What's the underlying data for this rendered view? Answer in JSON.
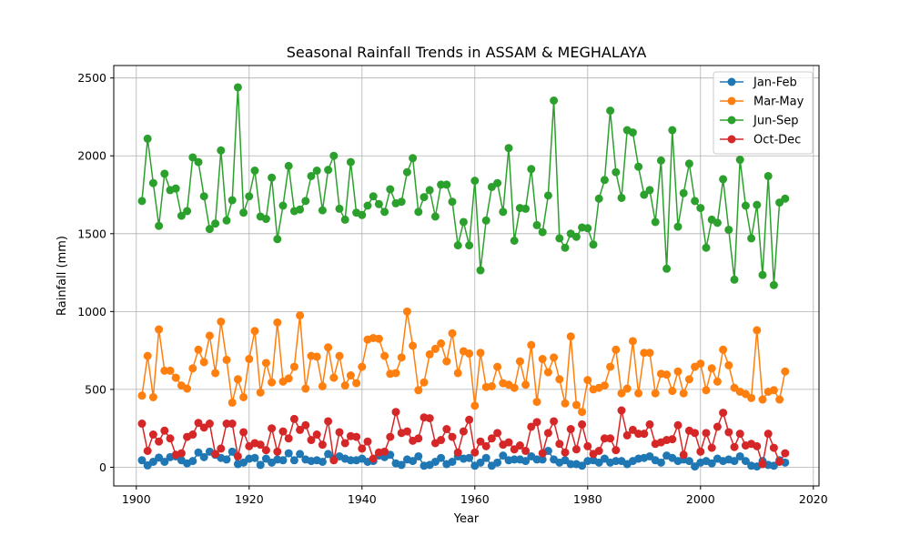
{
  "chart_data": {
    "type": "line",
    "title": "Seasonal Rainfall Trends in ASSAM & MEGHALAYA",
    "xlabel": "Year",
    "ylabel": "Rainfall (mm)",
    "xlim": [
      1896,
      2021
    ],
    "ylim": [
      -120,
      2580
    ],
    "xticks": [
      1900,
      1920,
      1940,
      1960,
      1980,
      2000,
      2020
    ],
    "yticks": [
      0,
      500,
      1000,
      1500,
      2000,
      2500
    ],
    "grid": true,
    "legend_position": "top-right",
    "x_start": 1901,
    "series": [
      {
        "name": "Jan-Feb",
        "color": "#1f77b4",
        "values": [
          45,
          12,
          35,
          62,
          35,
          65,
          70,
          45,
          25,
          40,
          95,
          65,
          100,
          80,
          60,
          50,
          100,
          20,
          30,
          55,
          60,
          15,
          55,
          30,
          50,
          45,
          90,
          45,
          85,
          50,
          40,
          45,
          35,
          85,
          55,
          70,
          55,
          45,
          45,
          55,
          35,
          40,
          75,
          65,
          80,
          25,
          15,
          50,
          40,
          70,
          10,
          15,
          35,
          60,
          20,
          35,
          70,
          55,
          60,
          10,
          30,
          60,
          10,
          30,
          75,
          45,
          50,
          50,
          40,
          70,
          50,
          50,
          105,
          50,
          30,
          45,
          20,
          20,
          10,
          40,
          45,
          30,
          55,
          30,
          40,
          40,
          20,
          40,
          55,
          60,
          70,
          45,
          30,
          75,
          60,
          40,
          50,
          40,
          5,
          30,
          40,
          25,
          55,
          40,
          50,
          40,
          70,
          40,
          10,
          5,
          40,
          15,
          10,
          45,
          30
        ]
      },
      {
        "name": "Mar-May",
        "color": "#ff7f0e",
        "values": [
          460,
          715,
          450,
          885,
          620,
          620,
          575,
          525,
          505,
          635,
          755,
          675,
          845,
          605,
          935,
          690,
          415,
          565,
          450,
          695,
          875,
          480,
          670,
          545,
          930,
          550,
          570,
          645,
          975,
          505,
          715,
          710,
          520,
          770,
          575,
          715,
          525,
          590,
          540,
          645,
          820,
          830,
          825,
          715,
          600,
          605,
          705,
          1000,
          780,
          495,
          545,
          725,
          760,
          795,
          680,
          860,
          605,
          745,
          730,
          395,
          735,
          515,
          520,
          645,
          540,
          530,
          510,
          680,
          530,
          785,
          420,
          695,
          610,
          705,
          565,
          410,
          840,
          400,
          355,
          560,
          500,
          510,
          525,
          645,
          755,
          475,
          505,
          810,
          475,
          735,
          735,
          475,
          600,
          595,
          490,
          615,
          475,
          565,
          645,
          665,
          495,
          635,
          550,
          755,
          655,
          510,
          485,
          470,
          445,
          880,
          435,
          485,
          495,
          435,
          615
        ]
      },
      {
        "name": "Jun-Sep",
        "color": "#2ca02c",
        "values": [
          1710,
          2110,
          1825,
          1550,
          1885,
          1780,
          1790,
          1615,
          1645,
          1990,
          1960,
          1740,
          1530,
          1565,
          2035,
          1585,
          1715,
          2440,
          1635,
          1740,
          1905,
          1610,
          1595,
          1860,
          1465,
          1680,
          1935,
          1645,
          1655,
          1710,
          1870,
          1905,
          1650,
          1910,
          2000,
          1660,
          1590,
          1960,
          1635,
          1620,
          1680,
          1740,
          1690,
          1640,
          1785,
          1695,
          1705,
          1895,
          1985,
          1640,
          1735,
          1780,
          1610,
          1815,
          1815,
          1705,
          1425,
          1575,
          1425,
          1840,
          1265,
          1585,
          1800,
          1825,
          1640,
          2050,
          1455,
          1665,
          1660,
          1915,
          1555,
          1510,
          1745,
          2355,
          1470,
          1410,
          1500,
          1480,
          1540,
          1535,
          1430,
          1725,
          1845,
          2290,
          1895,
          1730,
          2165,
          2150,
          1930,
          1750,
          1780,
          1575,
          1970,
          1275,
          2165,
          1545,
          1760,
          1950,
          1710,
          1665,
          1410,
          1590,
          1570,
          1850,
          1525,
          1205,
          1975,
          1680,
          1470,
          1685,
          1235,
          1870,
          1170,
          1700,
          1725
        ]
      },
      {
        "name": "Oct-Dec",
        "color": "#d62728",
        "values": [
          280,
          105,
          210,
          165,
          235,
          185,
          80,
          90,
          195,
          210,
          285,
          255,
          280,
          85,
          120,
          280,
          280,
          70,
          225,
          135,
          155,
          145,
          110,
          250,
          100,
          230,
          185,
          310,
          240,
          270,
          175,
          210,
          145,
          295,
          45,
          225,
          155,
          200,
          195,
          120,
          165,
          55,
          95,
          100,
          195,
          355,
          220,
          230,
          170,
          185,
          320,
          315,
          155,
          175,
          245,
          195,
          95,
          230,
          305,
          95,
          165,
          135,
          185,
          220,
          145,
          160,
          115,
          140,
          105,
          260,
          290,
          90,
          220,
          295,
          150,
          95,
          245,
          115,
          275,
          135,
          85,
          105,
          185,
          185,
          110,
          365,
          205,
          240,
          215,
          215,
          275,
          150,
          160,
          175,
          180,
          270,
          80,
          235,
          220,
          100,
          220,
          125,
          260,
          350,
          225,
          130,
          215,
          140,
          150,
          135,
          20,
          215,
          125,
          35,
          90
        ]
      }
    ]
  }
}
